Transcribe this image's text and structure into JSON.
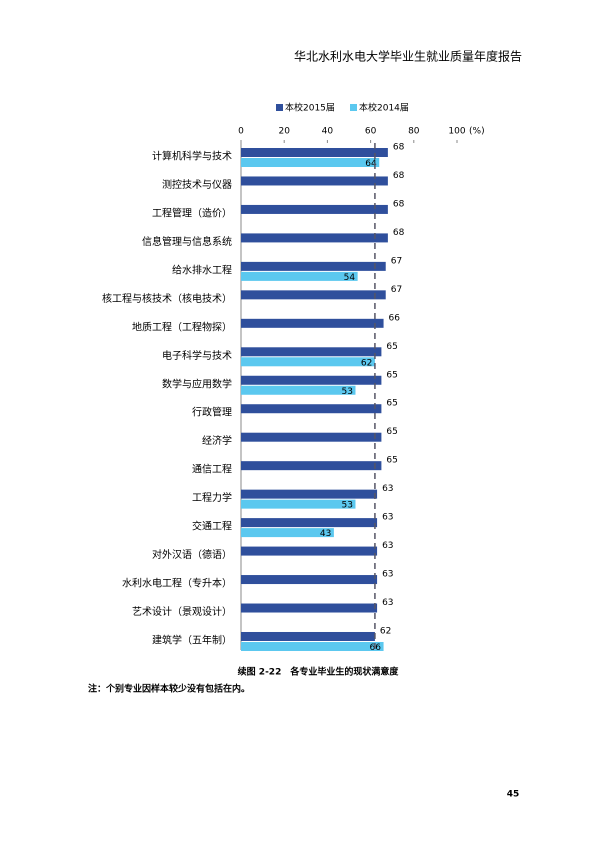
{
  "header": {
    "title": "华北水利水电大学毕业生就业质量年度报告"
  },
  "chart_data": {
    "type": "bar",
    "orientation": "horizontal",
    "categories": [
      "计算机科学与技术",
      "测控技术与仪器",
      "工程管理（造价）",
      "信息管理与信息系统",
      "给水排水工程",
      "核工程与核技术（核电技术）",
      "地质工程（工程物探）",
      "电子科学与技术",
      "数学与应用数学",
      "行政管理",
      "经济学",
      "通信工程",
      "工程力学",
      "交通工程",
      "对外汉语（德语）",
      "水利水电工程（专升本）",
      "艺术设计（景观设计）",
      "建筑学（五年制）"
    ],
    "series": [
      {
        "name": "本校2015届",
        "color": "#2f4f9c",
        "values": [
          68,
          68,
          68,
          68,
          67,
          67,
          66,
          65,
          65,
          65,
          65,
          65,
          63,
          63,
          63,
          63,
          63,
          62
        ]
      },
      {
        "name": "本校2014届",
        "color": "#5bc8ef",
        "values": [
          64,
          null,
          null,
          null,
          54,
          null,
          null,
          62,
          53,
          null,
          null,
          null,
          53,
          43,
          null,
          null,
          null,
          66
        ]
      }
    ],
    "xlim": [
      0,
      100
    ],
    "xticks": [
      0,
      20,
      40,
      60,
      80,
      100
    ],
    "xlabel": "(%)",
    "reference_line": 62,
    "legend": "top"
  },
  "caption": "续图 2-22　各专业毕业生的现状满意度",
  "note": "注：个别专业因样本较少没有包括在内。",
  "page_number": "45"
}
